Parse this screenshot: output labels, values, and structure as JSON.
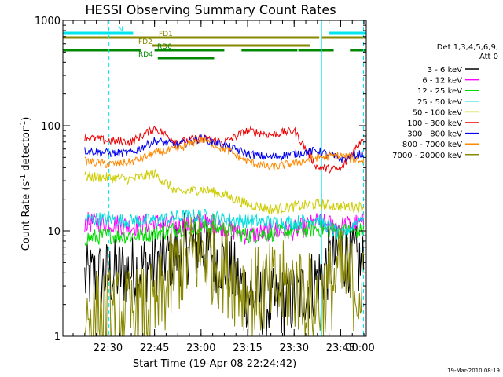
{
  "chart_data": {
    "type": "line",
    "title": "HESSI Observing Summary Count Rates",
    "xlabel": "Start Time (19-Apr-08 22:24:42)",
    "ylabel": "Count Rate (s⁻¹ detector⁻¹)",
    "ylabel_main": "Count Rate (s",
    "ylabel_sup1": "-1",
    "ylabel_mid": " detector",
    "ylabel_sup2": "-1",
    "ylabel_end": ")",
    "x_unit": "minutes",
    "xlim": [
      -4.7,
      60.5
    ],
    "ylim": [
      1,
      1000
    ],
    "y_scale": "log",
    "grid": false,
    "x_ticks": [
      {
        "value": 5,
        "label": "22:30"
      },
      {
        "value": 15,
        "label": "22:45"
      },
      {
        "value": 25,
        "label": "23:00"
      },
      {
        "value": 35,
        "label": "23:15"
      },
      {
        "value": 45,
        "label": "23:30"
      },
      {
        "value": 55,
        "label": "23:45"
      },
      {
        "value": 65,
        "label": "00:00"
      }
    ],
    "y_ticks": [
      {
        "value": 1,
        "label": "1"
      },
      {
        "value": 10,
        "label": "10"
      },
      {
        "value": 100,
        "label": "100"
      },
      {
        "value": 1000,
        "label": "1000"
      }
    ],
    "legend_header": [
      "Det 1,3,4,5,6,9,",
      "Att 0"
    ],
    "legend_position": "right",
    "series": [
      {
        "name": "3 - 6 keV",
        "color": "#000000",
        "x": [
          0,
          5,
          10,
          15,
          20,
          25,
          30,
          35,
          40,
          45,
          50,
          55,
          60
        ],
        "values": [
          3.5,
          3.8,
          4.2,
          4.8,
          6.5,
          7.2,
          5.0,
          2.5,
          2.0,
          2.2,
          3.5,
          6.5,
          4.5
        ]
      },
      {
        "name": "6 - 12 keV",
        "color": "#ff00ff",
        "x": [
          0,
          5,
          10,
          15,
          20,
          25,
          30,
          35,
          40,
          45,
          50,
          55,
          60
        ],
        "values": [
          12,
          12,
          11,
          12,
          11,
          12,
          11,
          9,
          10,
          10,
          12,
          11,
          12
        ]
      },
      {
        "name": "12 - 25 keV",
        "color": "#00dd00",
        "x": [
          0,
          5,
          10,
          15,
          20,
          25,
          30,
          35,
          40,
          45,
          50,
          55,
          60
        ],
        "values": [
          8.5,
          9,
          9,
          9.5,
          10.5,
          11,
          10.5,
          9,
          9.5,
          10,
          10.5,
          10,
          10
        ]
      },
      {
        "name": "25 - 50 keV",
        "color": "#00dddd",
        "x": [
          0,
          5,
          10,
          15,
          20,
          25,
          30,
          35,
          40,
          45,
          50,
          55,
          60
        ],
        "values": [
          13,
          13,
          12.5,
          12.5,
          13.5,
          14,
          13,
          12.5,
          12,
          12,
          13,
          9,
          14
        ]
      },
      {
        "name": "50 - 100 keV",
        "color": "#cccc00",
        "x": [
          0,
          5,
          10,
          15,
          20,
          25,
          30,
          35,
          40,
          45,
          50,
          55,
          60
        ],
        "values": [
          33,
          32,
          31,
          35,
          23,
          25,
          22,
          18,
          16,
          17,
          18,
          17,
          17
        ]
      },
      {
        "name": "100 - 300 keV",
        "color": "#ee0000",
        "x": [
          0,
          5,
          10,
          15,
          20,
          25,
          30,
          35,
          40,
          45,
          50,
          55,
          60
        ],
        "values": [
          78,
          72,
          70,
          95,
          70,
          76,
          70,
          90,
          82,
          90,
          40,
          38,
          80
        ]
      },
      {
        "name": "300 - 800 keV",
        "color": "#0000ee",
        "x": [
          0,
          5,
          10,
          15,
          20,
          25,
          30,
          35,
          40,
          45,
          50,
          55,
          60
        ],
        "values": [
          58,
          55,
          55,
          72,
          65,
          76,
          65,
          54,
          50,
          54,
          58,
          48,
          55
        ]
      },
      {
        "name": "800 - 7000 keV",
        "color": "#ff8800",
        "x": [
          0,
          5,
          10,
          15,
          20,
          25,
          30,
          35,
          40,
          45,
          50,
          55,
          60
        ],
        "values": [
          46,
          43,
          45,
          55,
          60,
          74,
          60,
          46,
          40,
          44,
          50,
          52,
          46
        ]
      },
      {
        "name": "7000 - 20000 keV",
        "color": "#888800",
        "x": [
          0,
          5,
          10,
          15,
          20,
          25,
          30,
          35,
          40,
          45,
          50,
          55,
          60
        ],
        "values": [
          1.5,
          1.6,
          1.6,
          1.8,
          4.5,
          6.5,
          4.5,
          2.5,
          2.8,
          3.0,
          2.0,
          4.0,
          2.5
        ]
      }
    ],
    "flag_bars": [
      {
        "label": "N",
        "color": "#00e5ee",
        "segments": [
          [
            -4.7,
            10.4
          ],
          [
            52.5,
            60.5
          ]
        ]
      },
      {
        "label": "FD1",
        "color": "#888800",
        "segments": [
          [
            -4.7,
            50.4
          ],
          [
            51.0,
            60.5
          ]
        ]
      },
      {
        "label": "FD2",
        "color": "#888800",
        "segments": [
          [
            14.5,
            48.5
          ]
        ]
      },
      {
        "label": "RD0",
        "color": "#008800",
        "segments": [
          [
            -4.7,
            12.0
          ],
          [
            15.0,
            30.0
          ],
          [
            33.7,
            45.7
          ],
          [
            45.9,
            53.5
          ],
          [
            57.0,
            60.5
          ]
        ]
      },
      {
        "label": "RD4",
        "color": "#008800",
        "segments": [
          [
            15.7,
            27.8
          ]
        ]
      }
    ],
    "vertical_lines": [
      {
        "value": 5.2,
        "color": "#00e5ee",
        "dash": true
      },
      {
        "value": 50.9,
        "color": "#00e5ee",
        "dash": false
      },
      {
        "value": 59.9,
        "color": "#00e5ee",
        "dash": true
      }
    ]
  },
  "footer_timestamp": "19-Mar-2010 08:19"
}
